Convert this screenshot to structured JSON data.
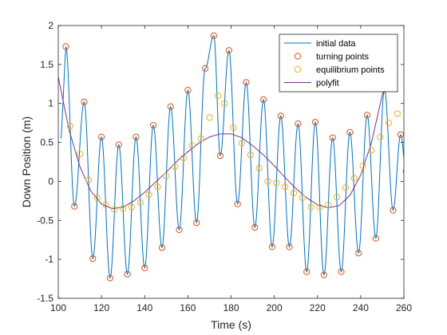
{
  "chart_data": {
    "type": "line",
    "xlabel": "Time (s)",
    "ylabel": "Down Position (m)",
    "xlim": [
      100,
      260
    ],
    "ylim": [
      -1.5,
      2
    ],
    "xticks": [
      100,
      120,
      140,
      160,
      180,
      200,
      220,
      240,
      260
    ],
    "yticks": [
      -1.5,
      -1,
      -0.5,
      0,
      0.5,
      1,
      1.5,
      2
    ],
    "grid": false,
    "legend_position": "top-right",
    "series": [
      {
        "name": "initial data",
        "kind": "line",
        "color": "#0072bd"
      },
      {
        "name": "turning points",
        "kind": "marker",
        "color": "#d95319"
      },
      {
        "name": "equilibrium points",
        "kind": "marker",
        "color": "#edb120"
      },
      {
        "name": "polyfit",
        "kind": "line",
        "color": "#7e2f8e"
      }
    ],
    "turning_points": [
      [
        103.5,
        1.73
      ],
      [
        107.5,
        -0.32
      ],
      [
        112,
        1.02
      ],
      [
        116,
        -0.99
      ],
      [
        120,
        0.57
      ],
      [
        124,
        -1.24
      ],
      [
        128,
        0.47
      ],
      [
        132,
        -1.19
      ],
      [
        136,
        0.57
      ],
      [
        140,
        -1.11
      ],
      [
        144,
        0.72
      ],
      [
        148,
        -0.85
      ],
      [
        152,
        0.96
      ],
      [
        156,
        -0.62
      ],
      [
        160,
        1.17
      ],
      [
        164,
        -0.53
      ],
      [
        168,
        1.45
      ],
      [
        172,
        1.87
      ],
      [
        175,
        0.33
      ],
      [
        179,
        1.68
      ],
      [
        183,
        -0.29
      ],
      [
        187,
        1.27
      ],
      [
        191,
        -0.59
      ],
      [
        195,
        1.05
      ],
      [
        199,
        -0.84
      ],
      [
        203,
        0.84
      ],
      [
        207,
        -0.84
      ],
      [
        211,
        0.74
      ],
      [
        215,
        -1.16
      ],
      [
        219,
        0.76
      ],
      [
        223,
        -1.2
      ],
      [
        227,
        0.56
      ],
      [
        231,
        -1.16
      ],
      [
        235,
        0.63
      ],
      [
        239,
        -0.92
      ],
      [
        243,
        0.85
      ],
      [
        247,
        -0.73
      ],
      [
        251,
        1.18
      ],
      [
        255,
        -0.37
      ],
      [
        258.5,
        0.6
      ],
      [
        261,
        0.13
      ]
    ],
    "equilibrium_points": [
      [
        105.5,
        0.71
      ],
      [
        110,
        0.35
      ],
      [
        114,
        0.02
      ],
      [
        118,
        -0.21
      ],
      [
        122,
        -0.3
      ],
      [
        126,
        -0.36
      ],
      [
        130,
        -0.35
      ],
      [
        134,
        -0.33
      ],
      [
        138,
        -0.27
      ],
      [
        142,
        -0.17
      ],
      [
        146,
        -0.07
      ],
      [
        150,
        0.07
      ],
      [
        154,
        0.19
      ],
      [
        158,
        0.3
      ],
      [
        162,
        0.46
      ],
      [
        166,
        0.55
      ],
      [
        170,
        0.82
      ],
      [
        174,
        1.1
      ],
      [
        177,
        1.0
      ],
      [
        181,
        0.69
      ],
      [
        185,
        0.49
      ],
      [
        189,
        0.34
      ],
      [
        193,
        0.17
      ],
      [
        197,
        0.0
      ],
      [
        201,
        -0.02
      ],
      [
        205,
        -0.07
      ],
      [
        209,
        -0.15
      ],
      [
        213,
        -0.21
      ],
      [
        217,
        -0.33
      ],
      [
        221,
        -0.33
      ],
      [
        225,
        -0.3
      ],
      [
        229,
        -0.2
      ],
      [
        233,
        -0.08
      ],
      [
        237,
        0.04
      ],
      [
        241,
        0.2
      ],
      [
        245,
        0.4
      ],
      [
        249,
        0.57
      ],
      [
        253,
        0.75
      ],
      [
        257,
        0.87
      ]
    ],
    "polyfit": [
      [
        100,
        1.34
      ],
      [
        105,
        0.66
      ],
      [
        110,
        0.19
      ],
      [
        115,
        -0.12
      ],
      [
        120,
        -0.29
      ],
      [
        125,
        -0.35
      ],
      [
        130,
        -0.33
      ],
      [
        135,
        -0.25
      ],
      [
        140,
        -0.14
      ],
      [
        145,
        -0.01
      ],
      [
        150,
        0.12
      ],
      [
        155,
        0.26
      ],
      [
        160,
        0.38
      ],
      [
        165,
        0.49
      ],
      [
        170,
        0.57
      ],
      [
        175,
        0.61
      ],
      [
        180,
        0.61
      ],
      [
        185,
        0.56
      ],
      [
        190,
        0.46
      ],
      [
        195,
        0.34
      ],
      [
        200,
        0.2
      ],
      [
        205,
        0.05
      ],
      [
        210,
        -0.09
      ],
      [
        215,
        -0.21
      ],
      [
        220,
        -0.3
      ],
      [
        225,
        -0.34
      ],
      [
        230,
        -0.31
      ],
      [
        235,
        -0.18
      ],
      [
        240,
        0.08
      ],
      [
        245,
        0.5
      ],
      [
        250,
        1.11
      ],
      [
        253,
        1.43
      ],
      [
        255,
        1.69
      ]
    ],
    "raw_data_end": [
      262,
      0.43
    ]
  }
}
